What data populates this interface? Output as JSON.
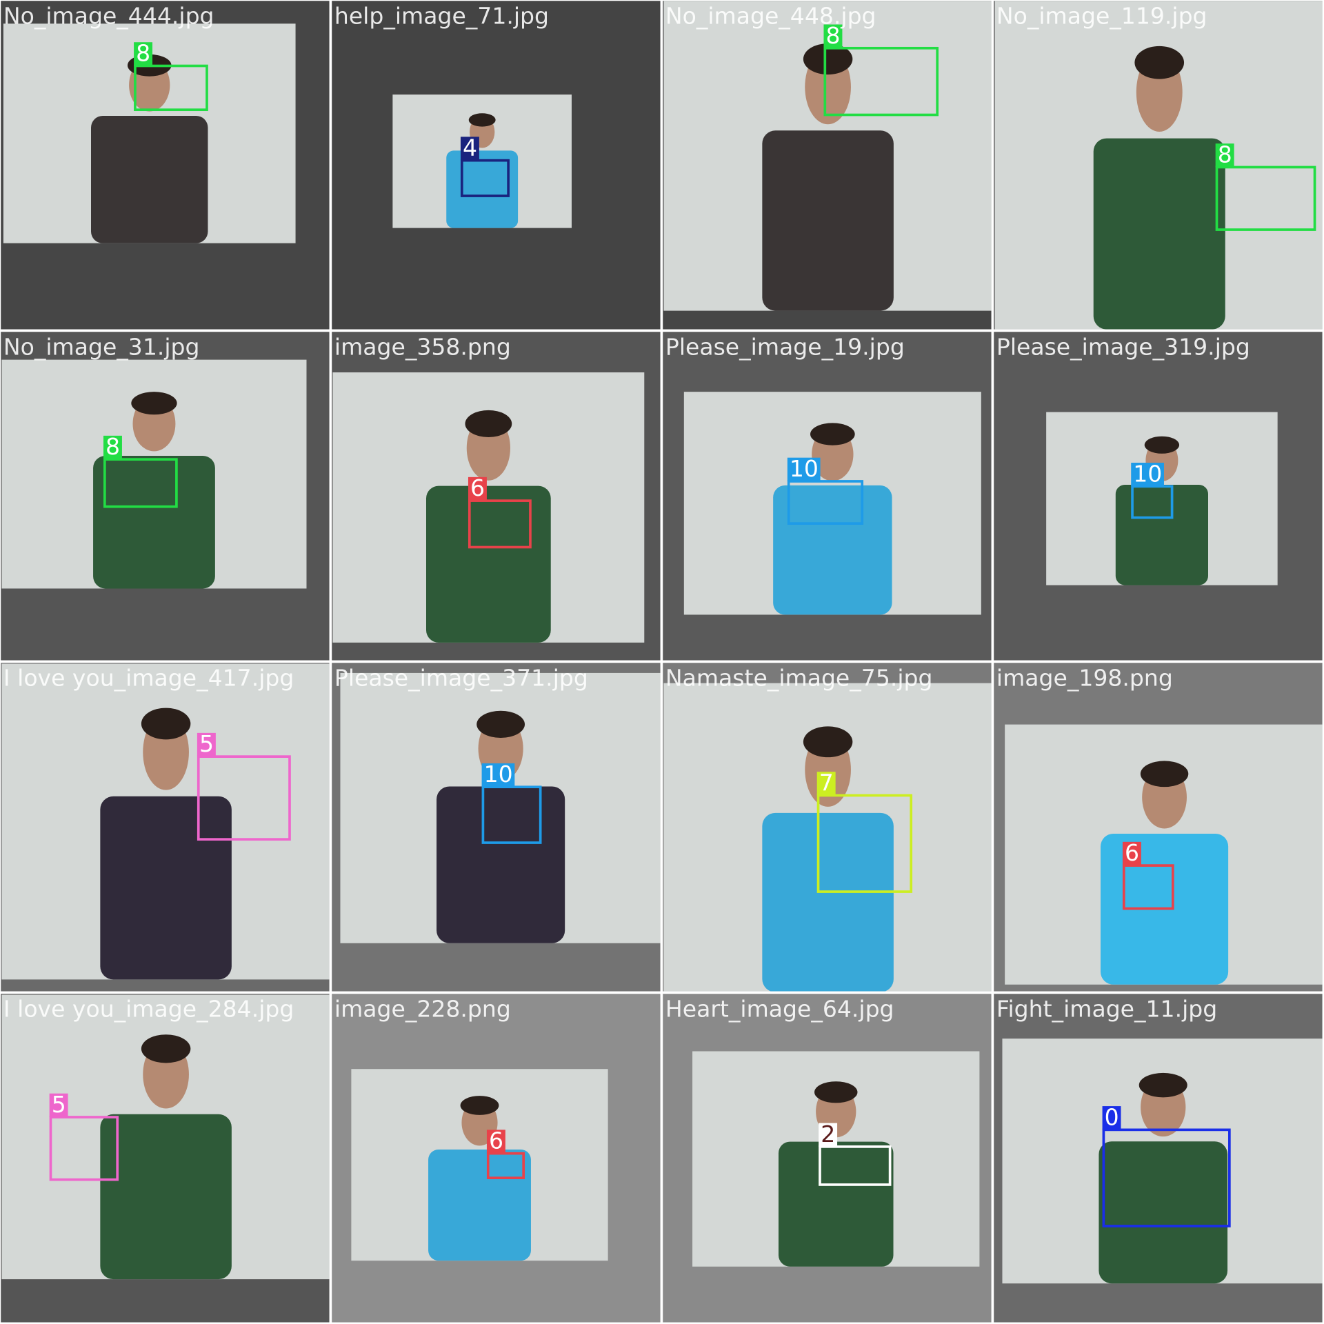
{
  "tiles": [
    {
      "filename": "No_image_444.jpg",
      "label": 8
    },
    {
      "filename": "help_image_71.jpg",
      "label": 4
    },
    {
      "filename": "No_image_448.jpg",
      "label": 8
    },
    {
      "filename": "No_image_119.jpg",
      "label": 8
    },
    {
      "filename": "No_image_31.jpg",
      "label": 8
    },
    {
      "filename": "image_358.png",
      "label": 6
    },
    {
      "filename": "Please_image_19.jpg",
      "label": 10
    },
    {
      "filename": "Please_image_319.jpg",
      "label": 10
    },
    {
      "filename": "I love you_image_417.jpg",
      "label": 5
    },
    {
      "filename": "Please_image_371.jpg",
      "label": 10
    },
    {
      "filename": "Namaste_image_75.jpg",
      "label": 7
    },
    {
      "filename": "image_198.png",
      "label": 6
    },
    {
      "filename": "I love you_image_284.jpg",
      "label": 5
    },
    {
      "filename": "image_228.png",
      "label": 6
    },
    {
      "filename": "Heart_image_64.jpg",
      "label": 2
    },
    {
      "filename": "Fight_image_11.jpg",
      "label": 0
    }
  ]
}
